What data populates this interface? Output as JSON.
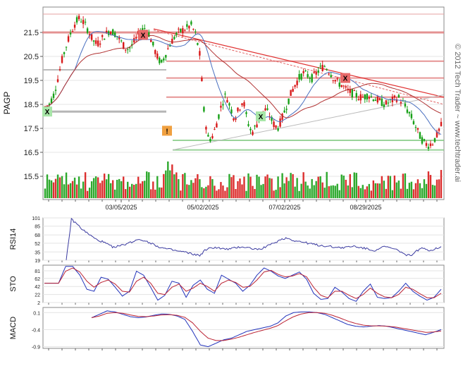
{
  "chart_data": [
    {
      "type": "candlestick",
      "panel": "price",
      "ylabel": "PAGP",
      "ylim": [
        16.3,
        22.4
      ],
      "yticks": [
        "21.5",
        "20.5",
        "19.5",
        "18.5",
        "17.5",
        "16.5",
        "15.5"
      ],
      "xticks": [
        "03/05/2025",
        "05/02/2025",
        "07/02/2025",
        "08/29/2025"
      ],
      "watermark": "© 2012 Tech Trader ~ www.techtrader.ai",
      "colors": {
        "up": "#16a016",
        "down": "#d81818",
        "ma_fast": "#4a70c0",
        "ma_slow": "#b03030"
      },
      "resistance_levels": [
        21.5,
        20.3,
        19.6,
        18.8
      ],
      "support_levels": [
        18.2,
        17.0,
        16.6
      ],
      "trendline": {
        "from": {
          "x": "mid-Mar",
          "y": 21.65
        },
        "to": {
          "x": "end",
          "y": 18.8
        }
      },
      "markers": [
        {
          "label": "X",
          "kind": "buy",
          "y": 18.2
        },
        {
          "label": "X",
          "kind": "sell",
          "y": 21.4
        },
        {
          "label": "!",
          "kind": "alert",
          "y": 17.4
        },
        {
          "label": "X",
          "kind": "buy",
          "y": 18.0
        },
        {
          "label": "X",
          "kind": "sell",
          "y": 19.6
        }
      ],
      "close_path": [
        18.4,
        18.5,
        18.9,
        19.6,
        20.4,
        21.0,
        21.5,
        21.9,
        22.1,
        21.9,
        21.6,
        21.2,
        21.0,
        21.2,
        21.4,
        21.6,
        21.5,
        21.3,
        21.0,
        20.8,
        20.9,
        21.2,
        21.5,
        21.7,
        21.5,
        21.0,
        20.5,
        20.2,
        20.6,
        21.0,
        21.3,
        21.5,
        21.6,
        21.7,
        21.8,
        21.4,
        20.5,
        18.0,
        17.0,
        17.2,
        17.8,
        18.5,
        18.9,
        18.4,
        17.9,
        18.3,
        18.7,
        17.8,
        17.3,
        17.6,
        18.0,
        18.3,
        18.1,
        17.7,
        17.5,
        17.9,
        18.4,
        18.9,
        19.3,
        19.6,
        19.8,
        19.7,
        19.6,
        19.8,
        20.0,
        20.1,
        19.9,
        19.6,
        19.4,
        19.3,
        19.1,
        19.0,
        18.9,
        18.8,
        18.8,
        18.9,
        18.8,
        18.7,
        18.6,
        18.5,
        18.6,
        18.7,
        18.8,
        18.6,
        18.3,
        18.0,
        17.6,
        17.2,
        16.9,
        16.8,
        16.9,
        17.2,
        17.6
      ]
    },
    {
      "type": "line",
      "panel": "RSI14",
      "ylabel": "RSI14",
      "yticks": [
        "101",
        "85",
        "68",
        "52",
        "35",
        "19"
      ],
      "ylim": [
        19,
        101
      ],
      "colors": {
        "line": "#3a3aa0"
      },
      "values": [
        19,
        98,
        90,
        80,
        72,
        65,
        58,
        55,
        50,
        45,
        46,
        48,
        52,
        55,
        60,
        58,
        54,
        50,
        45,
        42,
        40,
        38,
        36,
        35,
        32,
        30,
        28,
        38,
        42,
        44,
        42,
        40,
        41,
        43,
        45,
        44,
        42,
        40,
        42,
        46,
        50,
        55,
        60,
        62,
        58,
        56,
        54,
        52,
        50,
        48,
        47,
        46,
        45,
        44,
        43,
        45,
        46,
        44,
        42,
        40,
        38,
        42,
        45,
        43,
        40,
        36,
        30,
        28,
        35,
        42,
        40,
        38,
        42,
        46
      ]
    },
    {
      "type": "line",
      "panel": "STO",
      "ylabel": "STO",
      "yticks": [
        "81",
        "62",
        "42",
        "22",
        "2"
      ],
      "ylim": [
        2,
        95
      ],
      "colors": {
        "k": "#2233bb",
        "d": "#bb2233"
      },
      "k": [
        50,
        50,
        50,
        92,
        92,
        70,
        35,
        30,
        65,
        60,
        40,
        18,
        30,
        80,
        70,
        40,
        8,
        20,
        55,
        50,
        15,
        45,
        58,
        35,
        25,
        70,
        60,
        50,
        30,
        45,
        70,
        88,
        80,
        68,
        62,
        70,
        78,
        60,
        25,
        10,
        12,
        40,
        28,
        12,
        5,
        30,
        48,
        15,
        12,
        14,
        30,
        50,
        30,
        18,
        8,
        15,
        35
      ],
      "d": [
        50,
        50,
        50,
        80,
        88,
        78,
        55,
        40,
        52,
        58,
        48,
        30,
        28,
        55,
        65,
        50,
        25,
        22,
        40,
        48,
        30,
        38,
        50,
        42,
        30,
        50,
        58,
        52,
        40,
        42,
        58,
        78,
        82,
        72,
        66,
        68,
        74,
        66,
        40,
        20,
        14,
        30,
        30,
        20,
        12,
        22,
        38,
        25,
        16,
        14,
        22,
        40,
        35,
        24,
        14,
        14,
        25
      ]
    },
    {
      "type": "line",
      "panel": "MACD",
      "ylabel": "MACD",
      "yticks": [
        "0.1",
        "-0.4",
        "-0.9"
      ],
      "ylim": [
        -0.95,
        0.25
      ],
      "colors": {
        "macd": "#2233bb",
        "signal": "#bb2233"
      },
      "macd": [
        -0.05,
        0.05,
        0.15,
        0.12,
        0.05,
        -0.02,
        -0.05,
        -0.03,
        0.02,
        0.06,
        0.05,
        0.0,
        -0.1,
        -0.45,
        -0.85,
        -0.9,
        -0.8,
        -0.7,
        -0.65,
        -0.55,
        -0.45,
        -0.4,
        -0.35,
        -0.3,
        -0.2,
        0.0,
        0.1,
        0.12,
        0.12,
        0.1,
        0.05,
        -0.05,
        -0.15,
        -0.25,
        -0.3,
        -0.32,
        -0.3,
        -0.28,
        -0.3,
        -0.35,
        -0.4,
        -0.45,
        -0.5,
        -0.55,
        -0.48,
        -0.4
      ],
      "signal": [
        -0.05,
        0.0,
        0.08,
        0.1,
        0.08,
        0.03,
        -0.01,
        -0.02,
        0.0,
        0.03,
        0.04,
        0.02,
        -0.04,
        -0.2,
        -0.45,
        -0.65,
        -0.72,
        -0.72,
        -0.68,
        -0.62,
        -0.55,
        -0.48,
        -0.42,
        -0.36,
        -0.28,
        -0.14,
        -0.02,
        0.06,
        0.1,
        0.1,
        0.08,
        0.02,
        -0.06,
        -0.15,
        -0.22,
        -0.27,
        -0.29,
        -0.29,
        -0.3,
        -0.32,
        -0.36,
        -0.4,
        -0.44,
        -0.48,
        -0.47,
        -0.44
      ]
    }
  ]
}
